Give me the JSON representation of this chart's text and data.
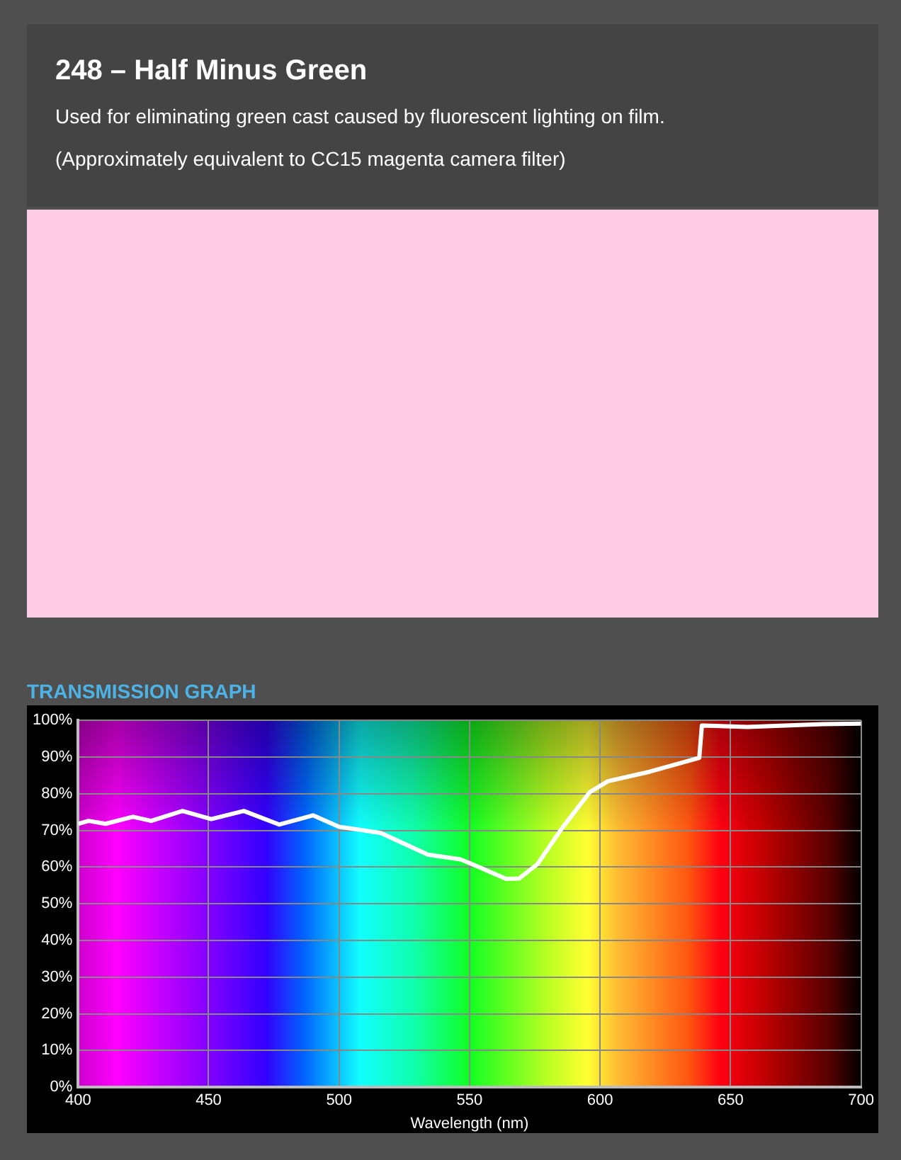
{
  "chart_data": {
    "type": "line",
    "title": "248 – Half Minus Green",
    "subtitle": "Used for eliminating green cast caused by fluorescent lighting on film.",
    "annotations": [
      "(Approximately equivalent to CC15 magenta camera filter)",
      "TRANSMISSION GRAPH"
    ],
    "xlabel": "Wavelength (nm)",
    "x": [
      400,
      404,
      410.5,
      421,
      428,
      440,
      451,
      463.5,
      477,
      490,
      500,
      516,
      534,
      546.5,
      551,
      564,
      569,
      576,
      585,
      596,
      603,
      619,
      638,
      639,
      656.5,
      685.5,
      700
    ],
    "series": [
      {
        "color": "#ffffff",
        "values": [
          71.8,
          72.6,
          71.8,
          73.7,
          72.6,
          75.3,
          73.1,
          75.3,
          71.6,
          74.1,
          71,
          69.3,
          63.4,
          62.1,
          60.8,
          56.8,
          56.9,
          60.8,
          70.2,
          80.4,
          83.4,
          86,
          89.8,
          98.6,
          98.2,
          99,
          99.1
        ]
      }
    ],
    "xlim": [
      400,
      700
    ],
    "xticks": [
      400,
      450,
      500,
      550,
      600,
      650,
      700
    ],
    "ylim": [
      0,
      100
    ],
    "yticks": [
      {
        "value": 0,
        "label": "0%"
      },
      {
        "value": 10,
        "label": "10%"
      },
      {
        "value": 20,
        "label": "20%"
      },
      {
        "value": 30,
        "label": "30%"
      },
      {
        "value": 40,
        "label": "40%"
      },
      {
        "value": 50,
        "label": "50%"
      },
      {
        "value": 60,
        "label": "60%"
      },
      {
        "value": 70,
        "label": "70%"
      },
      {
        "value": 80,
        "label": "80%"
      },
      {
        "value": 90,
        "label": "90%"
      },
      {
        "value": 100,
        "label": "100%"
      }
    ],
    "grid": true,
    "legend": false,
    "marker": "none",
    "line_style": "solid"
  }
}
